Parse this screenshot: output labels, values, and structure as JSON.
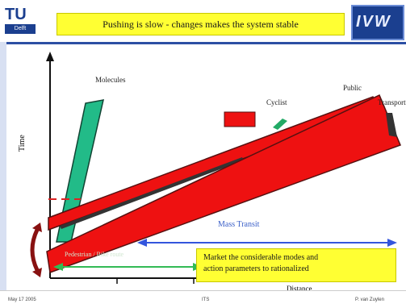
{
  "header": {
    "logo_left_text": "TU",
    "logo_left_sub": "Delft",
    "title": "Pushing is slow - changes makes the system stable",
    "logo_right_text": "IVW"
  },
  "diagram": {
    "y_axis_label": "Time",
    "x_axis_label": "Distance",
    "labels": {
      "bus": "Molecules",
      "cyclist": "Cyclist",
      "pedestrian": "Public",
      "transport": "Transport",
      "mass_transit": "Mass Transit",
      "slow_mode": "Pedestrian / Bike route"
    },
    "note_lines": [
      "Market the considerable modes and",
      "action parameters to rationalized"
    ],
    "colors": {
      "primary_band": "#ee1111",
      "band_outline": "#551111",
      "steep_band": "#22bb88",
      "highlight": "#ffff33",
      "blue_arrow": "#3355dd",
      "green_arrow": "#33bb55"
    }
  },
  "footer": {
    "left": "May 17 2005",
    "middle": "ITS",
    "right": "P. van Zuylen"
  }
}
